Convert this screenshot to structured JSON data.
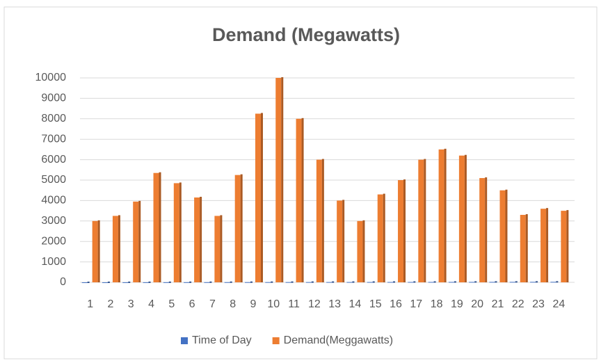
{
  "chart_data": {
    "type": "bar",
    "title": "Demand (Megawatts)",
    "categories": [
      "1",
      "2",
      "3",
      "4",
      "5",
      "6",
      "7",
      "8",
      "9",
      "10",
      "11",
      "12",
      "13",
      "14",
      "15",
      "16",
      "17",
      "18",
      "19",
      "20",
      "21",
      "22",
      "23",
      "24"
    ],
    "series": [
      {
        "name": "Time of Day",
        "color": "#4472c4",
        "values": [
          1,
          2,
          3,
          4,
          5,
          6,
          7,
          8,
          9,
          10,
          11,
          12,
          13,
          14,
          15,
          16,
          17,
          18,
          19,
          20,
          21,
          22,
          23,
          24
        ]
      },
      {
        "name": "Demand(Meggawatts)",
        "color": "#ed7d31",
        "values": [
          3000,
          3250,
          3950,
          5350,
          4850,
          4150,
          3250,
          5250,
          8250,
          10000,
          8000,
          6000,
          4000,
          3000,
          4300,
          5000,
          6000,
          6500,
          6200,
          5100,
          4500,
          3300,
          3600,
          3500
        ]
      }
    ],
    "ylim": [
      0,
      10000
    ],
    "yticks": [
      0,
      1000,
      2000,
      3000,
      4000,
      5000,
      6000,
      7000,
      8000,
      9000,
      10000
    ],
    "grid": true,
    "legend": "bottom"
  }
}
